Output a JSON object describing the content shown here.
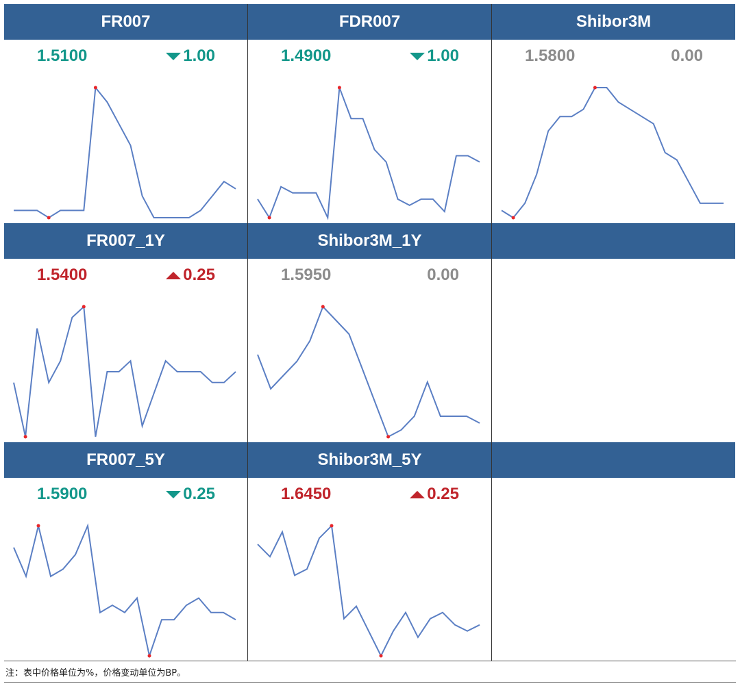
{
  "note": "注：表中价格单位为%，价格变动单位为BP。",
  "colors": {
    "header_bg": "#336194",
    "line": "#5b7fc4",
    "marker": "#e8262a",
    "down": "#13978a",
    "up": "#c0242b",
    "flat": "#8c8c8c"
  },
  "chart_data": [
    {
      "type": "line",
      "title": "FR007",
      "value": "1.5100",
      "change": "1.00",
      "direction": "down",
      "values": [
        1.46,
        1.46,
        1.46,
        1.45,
        1.46,
        1.46,
        1.46,
        1.63,
        1.61,
        1.58,
        1.55,
        1.48,
        1.45,
        1.45,
        1.45,
        1.45,
        1.46,
        1.48,
        1.5,
        1.49
      ],
      "markers": [
        "max",
        "min"
      ]
    },
    {
      "type": "line",
      "title": "FDR007",
      "value": "1.4900",
      "change": "1.00",
      "direction": "down",
      "values": [
        1.33,
        1.3,
        1.35,
        1.34,
        1.34,
        1.34,
        1.3,
        1.51,
        1.46,
        1.46,
        1.41,
        1.39,
        1.33,
        1.32,
        1.33,
        1.33,
        1.31,
        1.4,
        1.4,
        1.39
      ],
      "markers": [
        "max",
        "min"
      ]
    },
    {
      "type": "line",
      "title": "Shibor3M",
      "value": "1.5800",
      "change": "0.00",
      "direction": "flat",
      "values": [
        1.565,
        1.564,
        1.566,
        1.57,
        1.576,
        1.578,
        1.578,
        1.579,
        1.582,
        1.582,
        1.58,
        1.579,
        1.578,
        1.577,
        1.573,
        1.572,
        1.569,
        1.566,
        1.566,
        1.566
      ],
      "markers": [
        "max",
        "min"
      ]
    },
    {
      "type": "line",
      "title": "FR007_1Y",
      "value": "1.5400",
      "change": "0.25",
      "direction": "up",
      "values": [
        1.535,
        1.53,
        1.54,
        1.535,
        1.537,
        1.541,
        1.542,
        1.53,
        1.536,
        1.536,
        1.537,
        1.531,
        1.534,
        1.537,
        1.536,
        1.536,
        1.536,
        1.535,
        1.535,
        1.536
      ],
      "markers": [
        "max",
        "min"
      ]
    },
    {
      "type": "line",
      "title": "Shibor3M_1Y",
      "value": "1.5950",
      "change": "0.00",
      "direction": "flat",
      "values": [
        1.6,
        1.595,
        1.597,
        1.599,
        1.602,
        1.607,
        1.605,
        1.603,
        1.598,
        1.593,
        1.588,
        1.589,
        1.591,
        1.596,
        1.591,
        1.591,
        1.591,
        1.59
      ],
      "markers": [
        "max",
        "min"
      ]
    },
    {
      "type": "line",
      "title": "FR007_5Y",
      "value": "1.5900",
      "change": "0.25",
      "direction": "down",
      "values": [
        1.602,
        1.598,
        1.605,
        1.598,
        1.599,
        1.601,
        1.605,
        1.593,
        1.594,
        1.593,
        1.595,
        1.587,
        1.592,
        1.592,
        1.594,
        1.595,
        1.593,
        1.593,
        1.592
      ],
      "markers": [
        "max",
        "min"
      ]
    },
    {
      "type": "line",
      "title": "Shibor3M_5Y",
      "value": "1.6450",
      "change": "0.25",
      "direction": "up",
      "values": [
        1.655,
        1.653,
        1.657,
        1.65,
        1.651,
        1.656,
        1.658,
        1.643,
        1.645,
        1.641,
        1.637,
        1.641,
        1.644,
        1.64,
        1.643,
        1.644,
        1.642,
        1.641,
        1.642
      ],
      "markers": [
        "max",
        "min"
      ]
    }
  ]
}
